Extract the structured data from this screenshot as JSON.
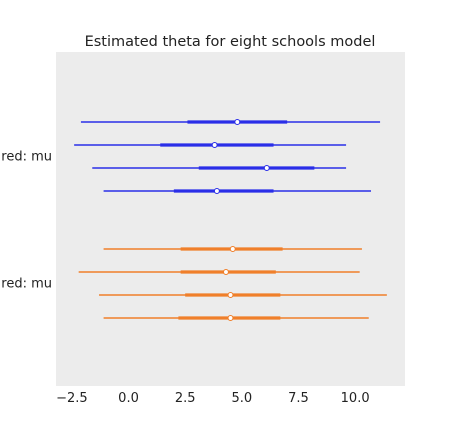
{
  "chart_data": {
    "type": "forest",
    "title": "Estimated theta for eight schools model",
    "xlabel": "",
    "ylabel": "",
    "xlim": [
      -3.2,
      12.2
    ],
    "x_ticks": [
      -2.5,
      0.0,
      2.5,
      5.0,
      7.5,
      10.0
    ],
    "x_tick_labels": [
      "−2.5",
      "0.0",
      "2.5",
      "5.0",
      "7.5",
      "10.0"
    ],
    "grid": false,
    "background": "#ececec",
    "groups": [
      {
        "label": "red: mu",
        "color": "#2a2ee8",
        "intervals": [
          {
            "hdi_low": -2.1,
            "hdi_high": 11.1,
            "iqr_low": 2.6,
            "iqr_high": 7.0,
            "point": 4.8
          },
          {
            "hdi_low": -2.4,
            "hdi_high": 9.6,
            "iqr_low": 1.4,
            "iqr_high": 6.4,
            "point": 3.8
          },
          {
            "hdi_low": -1.6,
            "hdi_high": 9.6,
            "iqr_low": 3.1,
            "iqr_high": 8.2,
            "point": 6.1
          },
          {
            "hdi_low": -1.1,
            "hdi_high": 10.7,
            "iqr_low": 2.0,
            "iqr_high": 6.4,
            "point": 3.9
          }
        ]
      },
      {
        "label": "red: mu",
        "color": "#f07f2a",
        "intervals": [
          {
            "hdi_low": -1.1,
            "hdi_high": 10.3,
            "iqr_low": 2.3,
            "iqr_high": 6.8,
            "point": 4.6
          },
          {
            "hdi_low": -2.2,
            "hdi_high": 10.2,
            "iqr_low": 2.3,
            "iqr_high": 6.5,
            "point": 4.3
          },
          {
            "hdi_low": -1.3,
            "hdi_high": 11.4,
            "iqr_low": 2.5,
            "iqr_high": 6.7,
            "point": 4.5
          },
          {
            "hdi_low": -1.1,
            "hdi_high": 10.6,
            "iqr_low": 2.2,
            "iqr_high": 6.7,
            "point": 4.5
          }
        ]
      }
    ]
  }
}
